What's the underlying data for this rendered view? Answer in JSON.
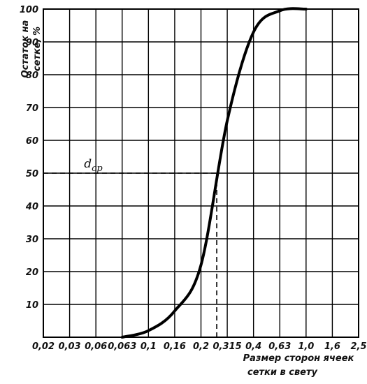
{
  "chart_data": {
    "type": "line",
    "title": "",
    "ylabel_lines": [
      "Остаток на",
      "сетке, %"
    ],
    "xlabel_lines": [
      "Размер сторон ячеек",
      "сетки в свету"
    ],
    "x_ticks": [
      "0,02",
      "0,03",
      "0,06",
      "0,063",
      "0,1",
      "0,16",
      "0,2",
      "0,315",
      "0,4",
      "0,63",
      "1,0",
      "1,6",
      "2,5"
    ],
    "y_ticks": [
      "10",
      "20",
      "30",
      "40",
      "50",
      "60",
      "70",
      "80",
      "90",
      "100"
    ],
    "ylim": [
      0,
      100
    ],
    "x_scale": "categorical (uneven sieve series)",
    "grid": true,
    "series": [
      {
        "x": [
          "0,063",
          "0,1",
          "0,16",
          "0,2",
          "0,315",
          "0,4",
          "0,63",
          "1,0"
        ],
        "y": [
          0,
          2,
          8,
          22,
          66,
          93,
          99.5,
          100
        ],
        "color": "#000000"
      }
    ],
    "annotations": [
      {
        "text": "d_cp",
        "main": "d",
        "sub": "cp",
        "y": 50,
        "x_between": [
          "0,2",
          "0,315"
        ],
        "style": "dashed"
      }
    ]
  }
}
